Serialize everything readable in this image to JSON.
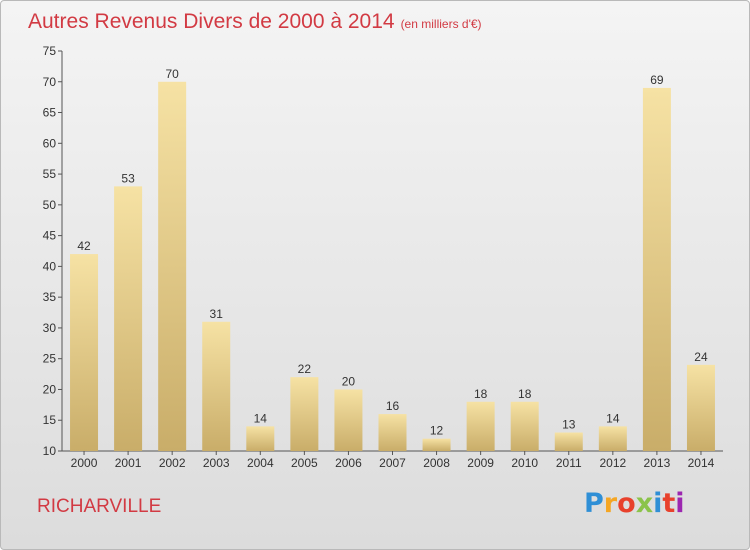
{
  "title": "Autres Revenus Divers de 2000 à 2014",
  "subtitle": "(en milliers d'€)",
  "commune": "RICHARVILLE",
  "logo": {
    "letters": [
      "P",
      "r",
      "o",
      "x",
      "i",
      "t",
      "i"
    ],
    "colors": [
      "#2f8fd6",
      "#f5a623",
      "#e8412c",
      "#8bc34a",
      "#2f8fd6",
      "#e8412c",
      "#9c27b0"
    ]
  },
  "colors": {
    "title": "#d23a43",
    "bar_light": "#f6e2a4",
    "bar_dark": "#c9ad69"
  },
  "chart_data": {
    "type": "bar",
    "categories": [
      "2000",
      "2001",
      "2002",
      "2003",
      "2004",
      "2005",
      "2006",
      "2007",
      "2008",
      "2009",
      "2010",
      "2011",
      "2012",
      "2013",
      "2014"
    ],
    "values": [
      42,
      53,
      70,
      31,
      14,
      22,
      20,
      16,
      12,
      18,
      18,
      13,
      14,
      69,
      24
    ],
    "ylim": [
      10,
      75
    ],
    "yticks": [
      10,
      15,
      20,
      25,
      30,
      35,
      40,
      45,
      50,
      55,
      60,
      65,
      70,
      75
    ],
    "grid": false,
    "xlabel": "",
    "ylabel": ""
  }
}
